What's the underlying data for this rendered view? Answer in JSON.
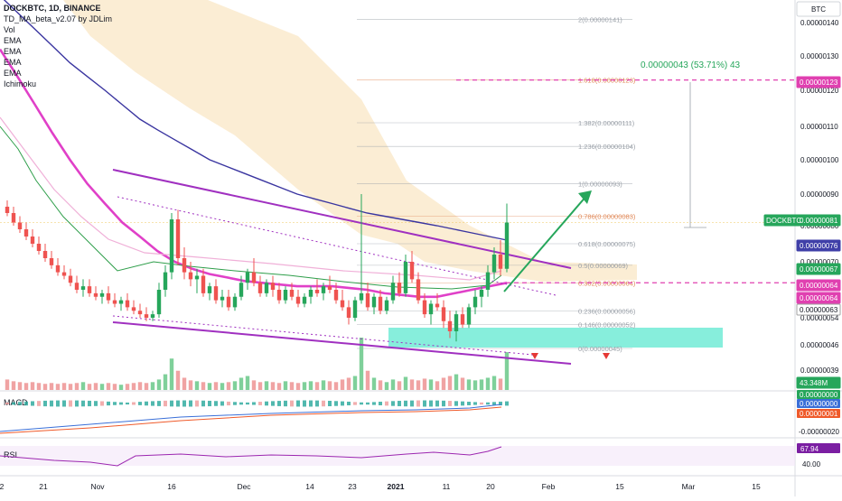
{
  "header": {
    "title": "DOCKBTC, 1D, BINANCE",
    "indicators": [
      "TD_MA_beta_v2.07 by JDLim",
      "Vol",
      "EMA",
      "EMA",
      "EMA",
      "EMA",
      "Ichimoku"
    ]
  },
  "price_axis": {
    "currency_badge": "BTC",
    "ticks": [
      "0.00000140",
      "0.00000130",
      "0.00000120",
      "0.00000110",
      "0.00000100",
      "0.00000090",
      "0.00000080",
      "0.00000070",
      "0.00000054",
      "0.00000046",
      "0.00000039"
    ],
    "tags": [
      {
        "label": "0.00000123",
        "color": "#e040b0",
        "value": 1.23e-06
      },
      {
        "label": "DOCKBTC",
        "sub": "0.00000081",
        "color": "#26a65b",
        "value": 8.1e-07
      },
      {
        "label": "0.00000076",
        "color": "#3f3fa8",
        "value": 7.6e-07
      },
      {
        "label": "0.00000067",
        "color": "#26a65b",
        "value": 6.7e-07
      },
      {
        "label": "0.00000064",
        "color": "#e040b0",
        "value": 6.4e-07
      },
      {
        "label": "0.00000064",
        "color": "#e040b0",
        "value": 6.4e-07
      },
      {
        "label": "0.00000063",
        "color": "#a0a0a0",
        "value": 6.3e-07
      },
      {
        "label": "43.348M",
        "color": "#26a65b"
      }
    ]
  },
  "fib_levels": [
    {
      "label": "2(0.00000141)",
      "ratio": "2",
      "value": 1.41e-06,
      "color": "#9aa0a8"
    },
    {
      "label": "1.618(0.00000123)",
      "ratio": "1.618",
      "value": 1.23e-06,
      "color": "#e08a5a"
    },
    {
      "label": "1.382(0.00000111)",
      "ratio": "1.382",
      "value": 1.11e-06,
      "color": "#9aa0a8"
    },
    {
      "label": "1.236(0.00000104)",
      "ratio": "1.236",
      "value": 1.04e-06,
      "color": "#9aa0a8"
    },
    {
      "label": "1(0.00000093)",
      "ratio": "1",
      "value": 9.3e-07,
      "color": "#9aa0a8"
    },
    {
      "label": "0.786(0.00000083)",
      "ratio": "0.786",
      "value": 8.3e-07,
      "color": "#e08a5a"
    },
    {
      "label": "0.618(0.00000075)",
      "ratio": "0.618",
      "value": 7.5e-07,
      "color": "#9aa0a8"
    },
    {
      "label": "0.5(0.00000069)",
      "ratio": "0.5",
      "value": 6.9e-07,
      "color": "#9aa0a8"
    },
    {
      "label": "0.382(0.00000064)",
      "ratio": "0.382",
      "value": 6.4e-07,
      "color": "#e08a5a"
    },
    {
      "label": "0.236(0.00000056)",
      "ratio": "0.236",
      "value": 5.6e-07,
      "color": "#9aa0a8"
    },
    {
      "label": "0.146(0.00000052)",
      "ratio": "0.146",
      "value": 5.2e-07,
      "color": "#9aa0a8"
    },
    {
      "label": "0(0.00000045)",
      "ratio": "0",
      "value": 4.5e-07,
      "color": "#9aa0a8"
    }
  ],
  "measure_label": "0.00000043 (53.71%) 43",
  "macd": {
    "label": "MACD",
    "tags": [
      {
        "label": "0.00000000",
        "color": "#26a65b"
      },
      {
        "label": "0.00000000",
        "color": "#3a6fd8"
      },
      {
        "label": "0.00000001",
        "color": "#ef5a2a"
      }
    ],
    "axis_tick": "-0.00000020"
  },
  "rsi": {
    "label": "RSI",
    "tag": "67.94",
    "axis_tick": "40.00"
  },
  "time_axis": [
    "2",
    "21",
    "Nov",
    "16",
    "Dec",
    "14",
    "23",
    "2021",
    "11",
    "20",
    "Feb",
    "15",
    "Mar",
    "15"
  ],
  "chart_data": {
    "type": "candlestick",
    "symbol": "DOCKBTC",
    "interval": "1D",
    "exchange": "BINANCE",
    "ylim": [
      3.5e-07,
      1.45e-06
    ],
    "last_close": 8.1e-07,
    "candles": [
      {
        "o": 8.6e-07,
        "h": 8.8e-07,
        "l": 8.3e-07,
        "c": 8.4e-07
      },
      {
        "o": 8.4e-07,
        "h": 8.6e-07,
        "l": 8e-07,
        "c": 8.1e-07
      },
      {
        "o": 8.1e-07,
        "h": 8.3e-07,
        "l": 7.8e-07,
        "c": 7.9e-07
      },
      {
        "o": 7.9e-07,
        "h": 8.1e-07,
        "l": 7.6e-07,
        "c": 7.7e-07
      },
      {
        "o": 7.7e-07,
        "h": 7.9e-07,
        "l": 7.4e-07,
        "c": 7.5e-07
      },
      {
        "o": 7.5e-07,
        "h": 7.7e-07,
        "l": 7.2e-07,
        "c": 7.3e-07
      },
      {
        "o": 7.3e-07,
        "h": 7.5e-07,
        "l": 7e-07,
        "c": 7.1e-07
      },
      {
        "o": 7.1e-07,
        "h": 7.3e-07,
        "l": 6.8e-07,
        "c": 6.9e-07
      },
      {
        "o": 6.9e-07,
        "h": 7.1e-07,
        "l": 6.6e-07,
        "c": 6.7e-07
      },
      {
        "o": 6.7e-07,
        "h": 6.9e-07,
        "l": 6.5e-07,
        "c": 6.6e-07
      },
      {
        "o": 6.6e-07,
        "h": 6.8e-07,
        "l": 6.3e-07,
        "c": 6.4e-07
      },
      {
        "o": 6.4e-07,
        "h": 6.6e-07,
        "l": 6.1e-07,
        "c": 6.2e-07
      },
      {
        "o": 6.2e-07,
        "h": 6.5e-07,
        "l": 6e-07,
        "c": 6.3e-07
      },
      {
        "o": 6.3e-07,
        "h": 6.5e-07,
        "l": 6e-07,
        "c": 6.1e-07
      },
      {
        "o": 6.1e-07,
        "h": 6.3e-07,
        "l": 5.9e-07,
        "c": 6e-07
      },
      {
        "o": 6e-07,
        "h": 6.2e-07,
        "l": 5.8e-07,
        "c": 6.1e-07
      },
      {
        "o": 6.1e-07,
        "h": 6.3e-07,
        "l": 5.8e-07,
        "c": 5.9e-07
      },
      {
        "o": 5.9e-07,
        "h": 6.1e-07,
        "l": 5.7e-07,
        "c": 5.8e-07
      },
      {
        "o": 5.8e-07,
        "h": 6e-07,
        "l": 5.6e-07,
        "c": 5.9e-07
      },
      {
        "o": 5.9e-07,
        "h": 6.1e-07,
        "l": 5.6e-07,
        "c": 5.7e-07
      },
      {
        "o": 5.7e-07,
        "h": 5.9e-07,
        "l": 5.5e-07,
        "c": 5.6e-07
      },
      {
        "o": 5.6e-07,
        "h": 5.8e-07,
        "l": 5.4e-07,
        "c": 5.5e-07
      },
      {
        "o": 5.5e-07,
        "h": 5.7e-07,
        "l": 5.3e-07,
        "c": 5.4e-07
      },
      {
        "o": 5.4e-07,
        "h": 5.6e-07,
        "l": 5.3e-07,
        "c": 5.5e-07
      },
      {
        "o": 5.5e-07,
        "h": 6.4e-07,
        "l": 5.4e-07,
        "c": 6.2e-07
      },
      {
        "o": 6.2e-07,
        "h": 6.9e-07,
        "l": 6e-07,
        "c": 6.7e-07
      },
      {
        "o": 6.7e-07,
        "h": 8.4e-07,
        "l": 6.5e-07,
        "c": 8.2e-07
      },
      {
        "o": 8.2e-07,
        "h": 8.5e-07,
        "l": 6.9e-07,
        "c": 7.1e-07
      },
      {
        "o": 7.1e-07,
        "h": 7.4e-07,
        "l": 6.5e-07,
        "c": 6.7e-07
      },
      {
        "o": 6.7e-07,
        "h": 7e-07,
        "l": 6.3e-07,
        "c": 6.5e-07
      },
      {
        "o": 6.5e-07,
        "h": 6.8e-07,
        "l": 6.1e-07,
        "c": 6.6e-07
      },
      {
        "o": 6.6e-07,
        "h": 6.8e-07,
        "l": 6e-07,
        "c": 6.1e-07
      },
      {
        "o": 6.1e-07,
        "h": 6.4e-07,
        "l": 5.9e-07,
        "c": 6.3e-07
      },
      {
        "o": 6.3e-07,
        "h": 6.5e-07,
        "l": 5.8e-07,
        "c": 5.9e-07
      },
      {
        "o": 5.9e-07,
        "h": 6.2e-07,
        "l": 5.7e-07,
        "c": 6e-07
      },
      {
        "o": 6e-07,
        "h": 6.2e-07,
        "l": 5.6e-07,
        "c": 5.7e-07
      },
      {
        "o": 5.7e-07,
        "h": 6.1e-07,
        "l": 5.6e-07,
        "c": 6e-07
      },
      {
        "o": 6e-07,
        "h": 6.6e-07,
        "l": 5.9e-07,
        "c": 6.4e-07
      },
      {
        "o": 6.4e-07,
        "h": 6.8e-07,
        "l": 6.2e-07,
        "c": 6.7e-07
      },
      {
        "o": 6.7e-07,
        "h": 7.1e-07,
        "l": 6.3e-07,
        "c": 6.4e-07
      },
      {
        "o": 6.4e-07,
        "h": 6.6e-07,
        "l": 6e-07,
        "c": 6.1e-07
      },
      {
        "o": 6.1e-07,
        "h": 6.5e-07,
        "l": 6e-07,
        "c": 6.4e-07
      },
      {
        "o": 6.4e-07,
        "h": 6.6e-07,
        "l": 6e-07,
        "c": 6.2e-07
      },
      {
        "o": 6.2e-07,
        "h": 6.4e-07,
        "l": 5.8e-07,
        "c": 5.9e-07
      },
      {
        "o": 5.9e-07,
        "h": 6.3e-07,
        "l": 5.8e-07,
        "c": 6.2e-07
      },
      {
        "o": 6.2e-07,
        "h": 6.4e-07,
        "l": 5.9e-07,
        "c": 6e-07
      },
      {
        "o": 6e-07,
        "h": 6.2e-07,
        "l": 5.7e-07,
        "c": 5.8e-07
      },
      {
        "o": 5.8e-07,
        "h": 6.1e-07,
        "l": 5.7e-07,
        "c": 6e-07
      },
      {
        "o": 6e-07,
        "h": 6.3e-07,
        "l": 5.8e-07,
        "c": 6.2e-07
      },
      {
        "o": 6.2e-07,
        "h": 6.5e-07,
        "l": 6e-07,
        "c": 6.1e-07
      },
      {
        "o": 6.1e-07,
        "h": 6.4e-07,
        "l": 5.9e-07,
        "c": 6.3e-07
      },
      {
        "o": 6.3e-07,
        "h": 6.6e-07,
        "l": 6.1e-07,
        "c": 6.2e-07
      },
      {
        "o": 6.2e-07,
        "h": 6.4e-07,
        "l": 5.8e-07,
        "c": 5.9e-07
      },
      {
        "o": 5.9e-07,
        "h": 6.2e-07,
        "l": 5.6e-07,
        "c": 5.7e-07
      },
      {
        "o": 5.7e-07,
        "h": 5.9e-07,
        "l": 5.2e-07,
        "c": 5.4e-07
      },
      {
        "o": 5.4e-07,
        "h": 6e-07,
        "l": 5.3e-07,
        "c": 5.9e-07
      },
      {
        "o": 5.9e-07,
        "h": 9e-07,
        "l": 5.8e-07,
        "c": 6.1e-07
      },
      {
        "o": 6.1e-07,
        "h": 6.4e-07,
        "l": 5.6e-07,
        "c": 5.7e-07
      },
      {
        "o": 5.7e-07,
        "h": 6.1e-07,
        "l": 5.5e-07,
        "c": 6e-07
      },
      {
        "o": 6e-07,
        "h": 6.2e-07,
        "l": 5.5e-07,
        "c": 5.6e-07
      },
      {
        "o": 5.6e-07,
        "h": 6e-07,
        "l": 5.5e-07,
        "c": 5.9e-07
      },
      {
        "o": 5.9e-07,
        "h": 6.6e-07,
        "l": 5.8e-07,
        "c": 6.4e-07
      },
      {
        "o": 6.4e-07,
        "h": 6.7e-07,
        "l": 6e-07,
        "c": 6.1e-07
      },
      {
        "o": 6.1e-07,
        "h": 7.2e-07,
        "l": 6e-07,
        "c": 7e-07
      },
      {
        "o": 7e-07,
        "h": 7.3e-07,
        "l": 6.4e-07,
        "c": 6.5e-07
      },
      {
        "o": 6.5e-07,
        "h": 6.7e-07,
        "l": 5.8e-07,
        "c": 5.9e-07
      },
      {
        "o": 5.9e-07,
        "h": 6.1e-07,
        "l": 5.4e-07,
        "c": 5.5e-07
      },
      {
        "o": 5.5e-07,
        "h": 5.9e-07,
        "l": 5.2e-07,
        "c": 5.8e-07
      },
      {
        "o": 5.8e-07,
        "h": 6.1e-07,
        "l": 5.6e-07,
        "c": 5.7e-07
      },
      {
        "o": 5.7e-07,
        "h": 5.9e-07,
        "l": 5.1e-07,
        "c": 5.3e-07
      },
      {
        "o": 5.3e-07,
        "h": 5.6e-07,
        "l": 4.8e-07,
        "c": 5e-07
      },
      {
        "o": 5e-07,
        "h": 5.6e-07,
        "l": 4.7e-07,
        "c": 5.5e-07
      },
      {
        "o": 5.5e-07,
        "h": 5.7e-07,
        "l": 5.1e-07,
        "c": 5.2e-07
      },
      {
        "o": 5.2e-07,
        "h": 5.8e-07,
        "l": 5.1e-07,
        "c": 5.7e-07
      },
      {
        "o": 5.7e-07,
        "h": 6.2e-07,
        "l": 5.5e-07,
        "c": 6e-07
      },
      {
        "o": 6e-07,
        "h": 6.3e-07,
        "l": 5.7e-07,
        "c": 6.2e-07
      },
      {
        "o": 6.2e-07,
        "h": 6.9e-07,
        "l": 6e-07,
        "c": 6.7e-07
      },
      {
        "o": 6.7e-07,
        "h": 7.4e-07,
        "l": 6.5e-07,
        "c": 7.2e-07
      },
      {
        "o": 7.2e-07,
        "h": 7.6e-07,
        "l": 6.6e-07,
        "c": 6.8e-07
      },
      {
        "o": 6.8e-07,
        "h": 8.7e-07,
        "l": 6.7e-07,
        "c": 8.1e-07
      }
    ],
    "volumes_millions": [
      12,
      10,
      9,
      8,
      9,
      8,
      7,
      8,
      7,
      8,
      7,
      8,
      9,
      7,
      8,
      7,
      8,
      7,
      6,
      7,
      8,
      9,
      8,
      9,
      12,
      18,
      36,
      22,
      14,
      11,
      10,
      9,
      8,
      9,
      8,
      9,
      10,
      14,
      16,
      11,
      9,
      10,
      9,
      8,
      10,
      9,
      8,
      9,
      10,
      9,
      11,
      10,
      9,
      12,
      14,
      16,
      60,
      22,
      14,
      11,
      9,
      12,
      10,
      15,
      12,
      11,
      13,
      12,
      10,
      14,
      16,
      18,
      14,
      12,
      11,
      12,
      14,
      16,
      13,
      43.348
    ],
    "moving_averages": [
      {
        "name": "EMA",
        "color": "#3a35a0",
        "values": [
          1.48e-06,
          1.43e-06,
          1.38e-06,
          1.33e-06,
          1.28e-06,
          1.24e-06,
          1.2e-06,
          1.16e-06,
          1.12e-06,
          1.09e-06,
          1.06e-06,
          1.03e-06,
          1e-06,
          9.8e-07,
          9.6e-07,
          9.4e-07,
          9.2e-07,
          9e-07,
          8.85e-07,
          8.7e-07,
          8.55e-07,
          8.4e-07,
          8.3e-07,
          8.2e-07,
          8.1e-07,
          8e-07,
          7.9e-07,
          7.8e-07,
          7.7e-07,
          7.6e-07
        ]
      },
      {
        "name": "EMA",
        "color": "#e040c8",
        "values": [
          1.32e-06,
          1.24e-06,
          1.16e-06,
          1.08e-06,
          1e-06,
          9.3e-07,
          8.7e-07,
          8.1e-07,
          7.7e-07,
          7.3e-07,
          7e-07,
          6.8e-07,
          6.65e-07,
          6.55e-07,
          6.45e-07,
          6.4e-07,
          6.35e-07,
          6.3e-07,
          6.3e-07,
          6.3e-07,
          6.25e-07,
          6.2e-07,
          6.1e-07,
          6.05e-07,
          6e-07,
          6e-07,
          6.1e-07,
          6.2e-07,
          6.3e-07,
          6.4e-07
        ]
      }
    ],
    "trendlines": [
      {
        "name": "upper-channel",
        "color": "#a030c0",
        "from": {
          "i": 14,
          "v": 8.6e-07
        },
        "to": {
          "i": 79,
          "v": 6.8e-07
        }
      },
      {
        "name": "lower-channel",
        "color": "#a030c0",
        "from": {
          "i": 14,
          "v": 5.2e-07
        },
        "to": {
          "i": 79,
          "v": 3.9e-07
        }
      }
    ],
    "annotations": [
      "0.00000043 (53.71%) 43"
    ]
  }
}
